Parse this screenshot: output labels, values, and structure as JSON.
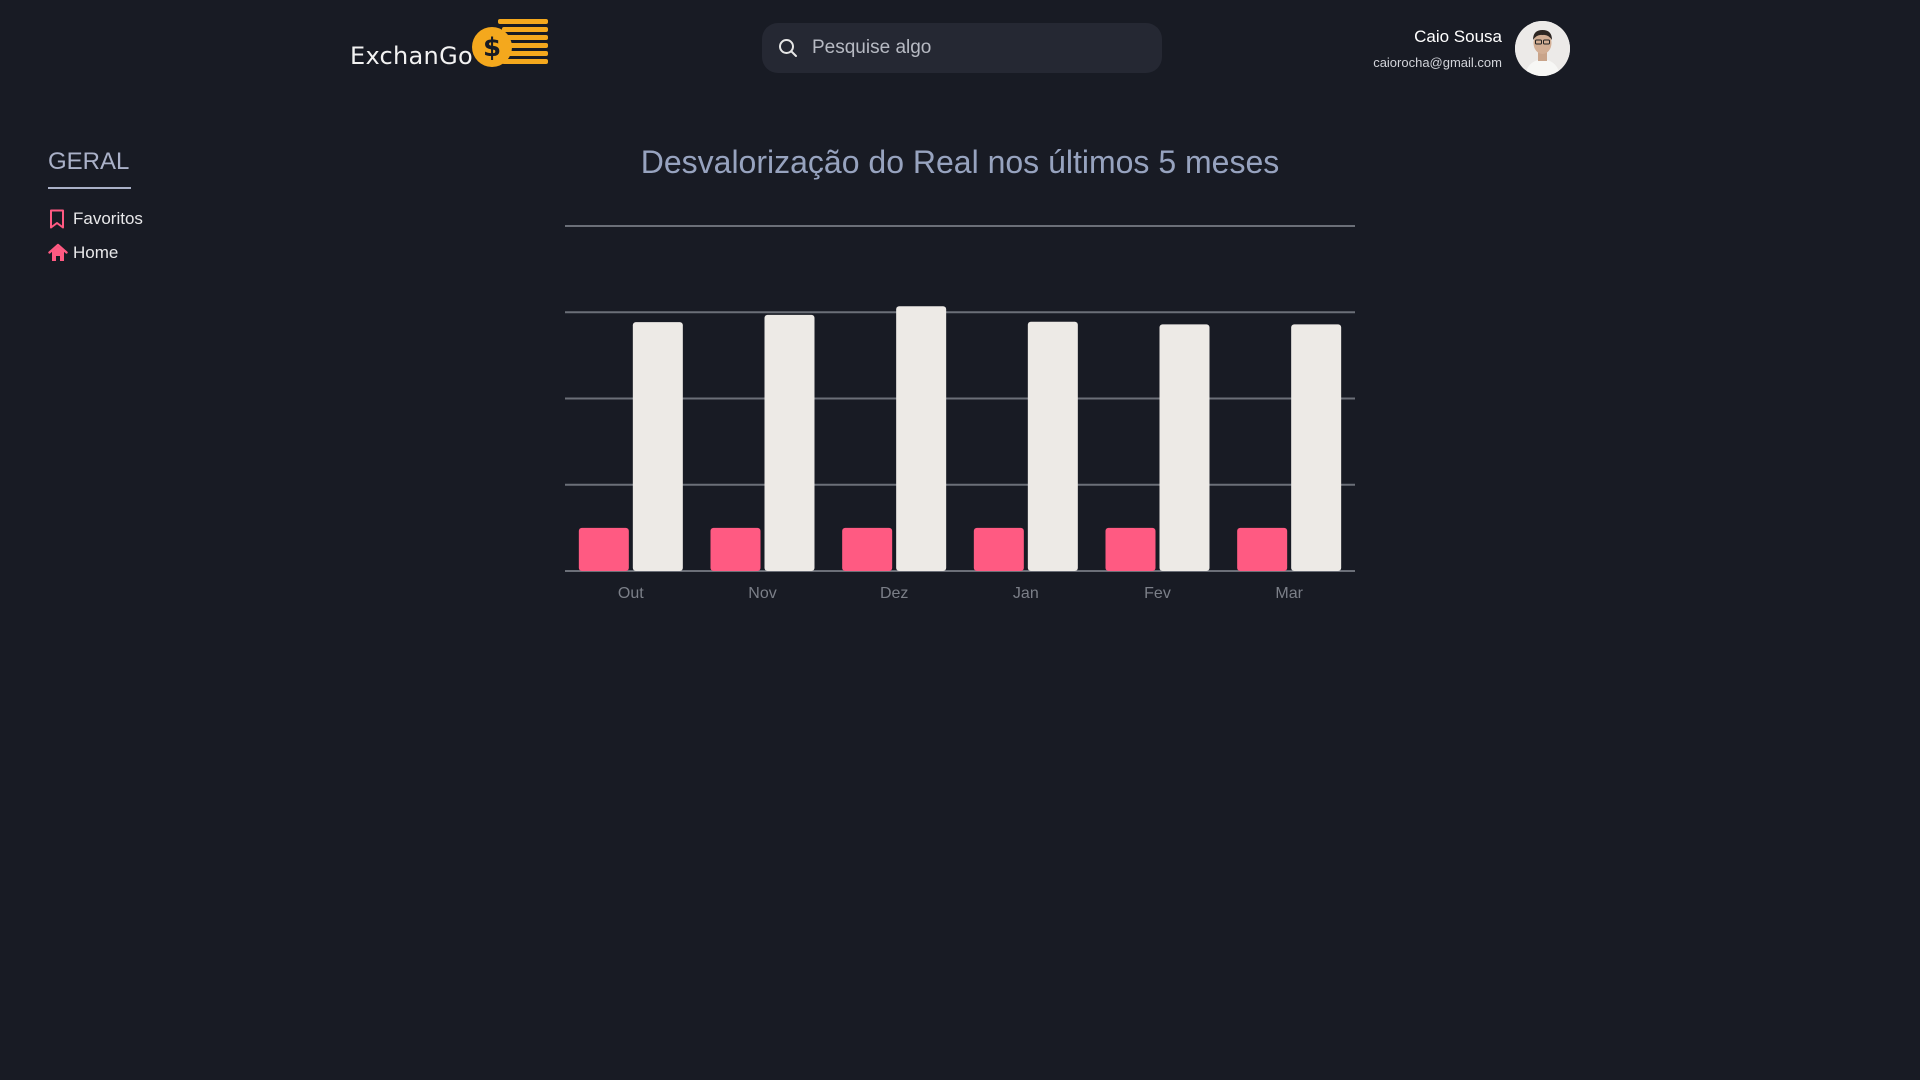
{
  "header": {
    "logo_text": "ExchanGo",
    "logo_symbol": "$",
    "search": {
      "placeholder": "Pesquise algo"
    },
    "user": {
      "name": "Caio Sousa",
      "email": "caiorocha@gmail.com"
    }
  },
  "sidebar": {
    "section_title": "GERAL",
    "items": [
      {
        "label": "Favoritos",
        "icon": "bookmark-icon"
      },
      {
        "label": "Home",
        "icon": "home-icon"
      }
    ]
  },
  "colors": {
    "background": "#181b24",
    "accent": "#ff5a82",
    "logo_gold": "#f4a81d",
    "bar_secondary": "#edeae6",
    "title": "#97a3bf"
  },
  "chart_data": {
    "type": "bar",
    "title": "Desvalorização do Real nos últimos 5 meses",
    "categories": [
      "Out",
      "Nov",
      "Dez",
      "Jan",
      "Fev",
      "Mar"
    ],
    "series": [
      {
        "values": [
          1,
          1,
          1,
          1,
          1,
          1
        ],
        "color": "#ff5a82"
      },
      {
        "values": [
          5.77,
          5.94,
          6.14,
          5.78,
          5.72,
          5.72
        ],
        "color": "#edeae6"
      }
    ],
    "ylim": [
      0,
      8
    ],
    "y_gridlines": [
      0,
      2,
      4,
      6,
      8
    ],
    "y_tick_labels_shown": false,
    "grid": true,
    "legend": "none"
  }
}
